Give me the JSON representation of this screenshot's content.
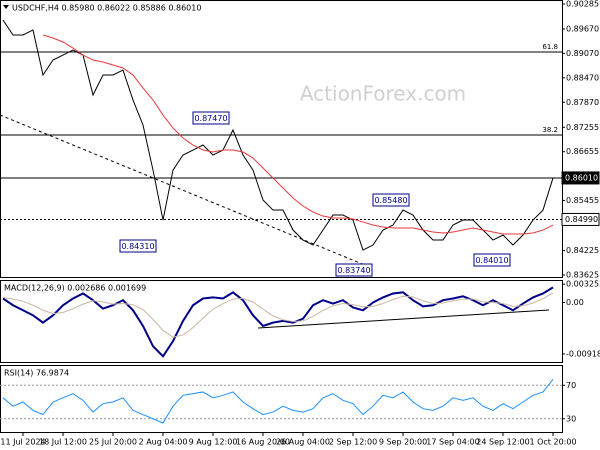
{
  "chart_data": [
    {
      "type": "line",
      "title": "USDCHF,H4 0.85980 0.86022 0.85886 0.86010",
      "watermark": "ActionForex.com",
      "categories": [
        null,
        null,
        "11 Jul 2024",
        null,
        null,
        null,
        "18 Jul 12:00",
        null,
        null,
        null,
        null,
        "25 Jul 20:00",
        null,
        null,
        null,
        null,
        "2 Aug 04:00",
        null,
        null,
        null,
        null,
        "9 Aug 12:00",
        null,
        null,
        null,
        null,
        "16 Aug 20:00",
        null,
        null,
        null,
        "26 Aug 04:00",
        null,
        null,
        null,
        null,
        "2 Sep 12:00",
        null,
        null,
        null,
        null,
        "9 Sep 20:00",
        null,
        null,
        null,
        null,
        "17 Sep 04:00",
        null,
        null,
        null,
        null,
        "24 Sep 12:00",
        null,
        null,
        null,
        null,
        "1 Oct 20:00"
      ],
      "series": [
        {
          "color": "#000000",
          "values": [
            0.89891,
            0.89523,
            0.89523,
            0.89646,
            0.8854,
            0.88908,
            0.89031,
            0.89154,
            0.89031,
            0.88048,
            0.8854,
            0.8854,
            0.88662,
            0.87925,
            0.87311,
            0.86204,
            0.84975,
            0.86204,
            0.86573,
            0.86696,
            0.86819,
            0.86573,
            0.86696,
            0.87188,
            0.86573,
            0.86204,
            0.85467,
            0.85221,
            0.85221,
            0.8473,
            0.84484,
            0.84361,
            0.8473,
            0.85098,
            0.85098,
            0.84975,
            0.84238,
            0.84361,
            0.8473,
            0.84853,
            0.85221,
            0.85098,
            0.8473,
            0.84484,
            0.84484,
            0.84853,
            0.84975,
            0.84975,
            0.8473,
            0.84484,
            0.84607,
            0.84361,
            0.84607,
            0.84975,
            0.85221,
            0.8601
          ]
        },
        {
          "color": "#e8393a",
          "values": [
            null,
            null,
            null,
            null,
            0.89523,
            0.89449,
            0.89351,
            0.89203,
            0.89031,
            0.88908,
            0.88859,
            0.88785,
            0.88712,
            0.8854,
            0.8822,
            0.87925,
            0.87556,
            0.87237,
            0.86991,
            0.86819,
            0.86696,
            0.86647,
            0.86696,
            0.86696,
            0.86647,
            0.86499,
            0.86254,
            0.86008,
            0.85762,
            0.85516,
            0.8532,
            0.85172,
            0.85074,
            0.85025,
            0.85025,
            0.85,
            0.84926,
            0.84853,
            0.84803,
            0.84779,
            0.84779,
            0.84779,
            0.8473,
            0.84681,
            0.84656,
            0.84681,
            0.8473,
            0.84779,
            0.8473,
            0.84681,
            0.84631,
            0.84631,
            0.84631,
            0.84656,
            0.8473,
            0.84853
          ]
        }
      ],
      "ylim": [
        0.83551,
        0.90383
      ],
      "yticks": [
        0.90285,
        {
          "value": 0.8967,
          "label": "0.89670"
        },
        {
          "value": 0.8907,
          "label": "0.89070"
        },
        {
          "value": 0.8847,
          "label": "0.88470"
        },
        {
          "value": 0.8787,
          "label": "0.87870"
        },
        0.87255,
        0.86655,
        0.85455,
        0.84225,
        0.83625
      ],
      "hlines": [
        {
          "value": 0.89105,
          "label": "61.8"
        },
        {
          "value": 0.87065,
          "label": "38.2"
        }
      ],
      "price_tags": [
        {
          "value": 0.8601,
          "label": "0.86010"
        },
        {
          "value": 0.8499,
          "label": "0.84990"
        }
      ],
      "annotations": [
        "0.87470",
        "0.85480",
        "0.84310",
        "0.83740",
        "0.84010"
      ]
    },
    {
      "type": "line",
      "title": "MACD(12,26,9) 0.002686 0.001699",
      "series": [
        {
          "color": "#00008b",
          "values": [
            0.0007,
            -0.0005,
            -0.0014,
            -0.0023,
            -0.0036,
            -0.0023,
            -0.0005,
            0.0007,
            0.0016,
            0.0004,
            -0.0011,
            -0.0005,
            0.0004,
            -0.0014,
            -0.0042,
            -0.0078,
            -0.0096,
            -0.0069,
            -0.0033,
            -0.0005,
            0.0007,
            0.0009,
            0.0007,
            0.0018,
            0.0004,
            -0.0023,
            -0.0042,
            -0.0036,
            -0.0033,
            -0.0036,
            -0.0029,
            -0.0005,
            0.0004,
            -0.0002,
            0.0004,
            -0.0009,
            -0.0014,
            0,
            0.0009,
            0.0016,
            0.0018,
            0.0004,
            -0.0007,
            -0.0005,
            0.0004,
            0.0007,
            0.0011,
            0.0004,
            -0.0005,
            0.0004,
            -0.0005,
            -0.0014,
            -0.0002,
            0.0009,
            0.0016,
            0.002686
          ]
        },
        {
          "color": "#c8b8a0",
          "values": [
            0.0009,
            0.0006,
            0.0002,
            -0.0005,
            -0.0014,
            -0.002,
            -0.0018,
            -0.0011,
            -0.0003,
            0.0003,
            0.0001,
            -0.0003,
            -0.0002,
            -0.0004,
            -0.0013,
            -0.003,
            -0.005,
            -0.0062,
            -0.0058,
            -0.0045,
            -0.0028,
            -0.0012,
            -0.0002,
            0.0006,
            0.0007,
            0.0001,
            -0.0012,
            -0.0024,
            -0.0031,
            -0.0034,
            -0.0033,
            -0.0025,
            -0.0014,
            -0.0006,
            -0.0002,
            -0.0004,
            -0.0008,
            -0.0007,
            -0.0002,
            0.0005,
            0.0011,
            0.001,
            0.0003,
            -0.0002,
            -0.0001,
            0.0003,
            0.0006,
            0.0006,
            0.0001,
            0,
            -0.0002,
            -0.0007,
            -0.0006,
            -0.0001,
            0.0007,
            0.001699
          ]
        }
      ],
      "ylim": [
        -0.0108,
        0.004
      ],
      "yticks": [
        0.003252,
        {
          "value": 0,
          "label": "0.00"
        },
        -0.009181
      ]
    },
    {
      "type": "line",
      "title": "RSI(14) 76.9874",
      "series": [
        {
          "color": "#1e90ff",
          "values": [
            55,
            45,
            50,
            40,
            35,
            50,
            55,
            60,
            52,
            38,
            48,
            50,
            55,
            40,
            35,
            30,
            25,
            45,
            58,
            60,
            62,
            55,
            58,
            62,
            50,
            42,
            35,
            38,
            45,
            40,
            38,
            42,
            55,
            60,
            52,
            48,
            35,
            45,
            58,
            55,
            62,
            50,
            42,
            40,
            45,
            55,
            52,
            55,
            45,
            40,
            48,
            42,
            50,
            58,
            62,
            76.9874
          ]
        }
      ],
      "ylim": [
        13,
        93
      ],
      "yticks": [
        70,
        30
      ],
      "grid": true
    }
  ]
}
